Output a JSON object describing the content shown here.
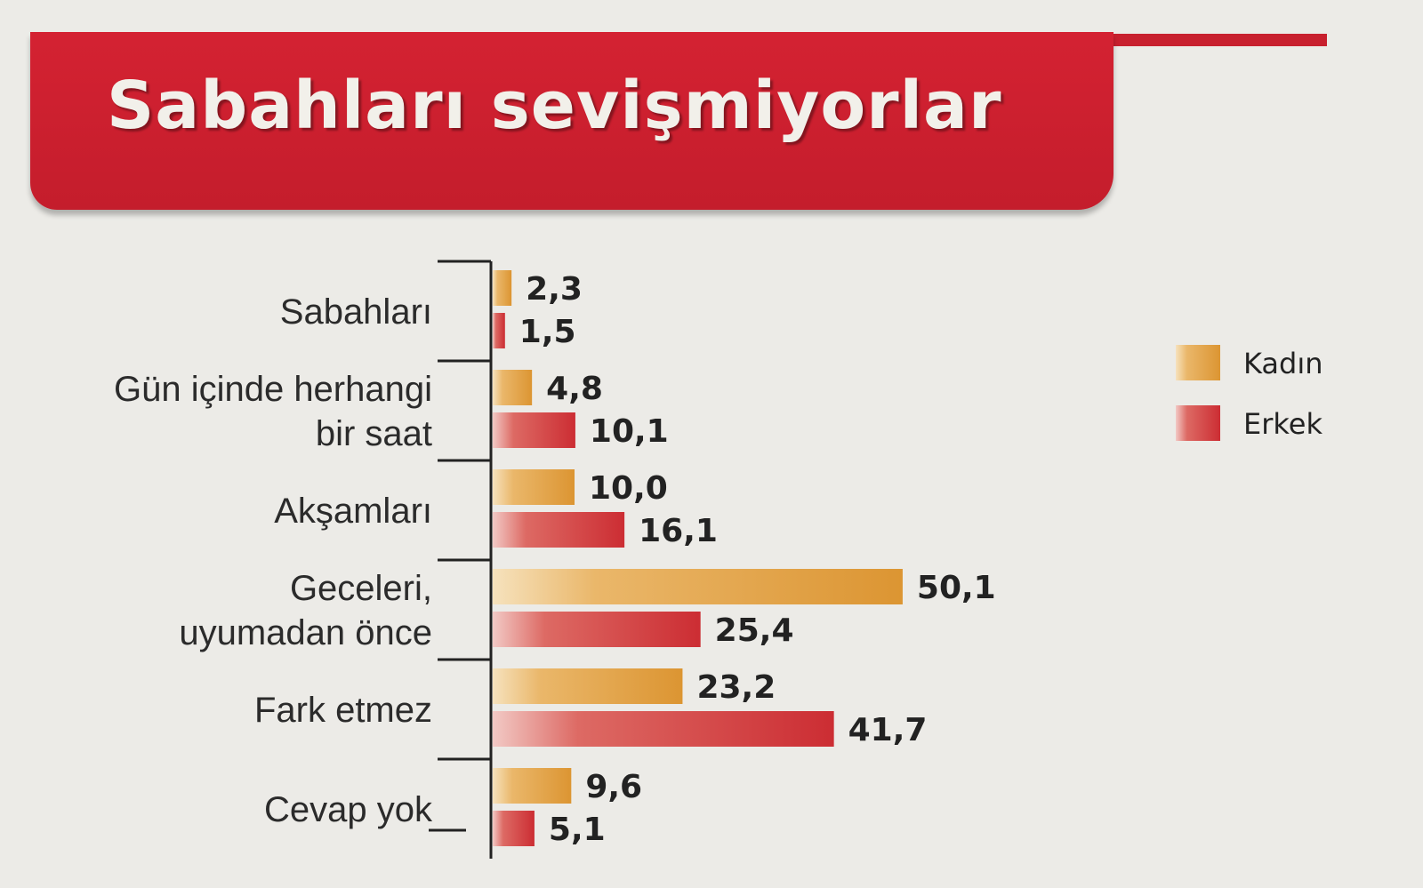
{
  "header": {
    "title": "Sabahları sevişmiyorlar"
  },
  "colors": {
    "banner": "#c8202e",
    "kadin": "#e2a140",
    "erkek": "#d23a3e"
  },
  "chart_data": {
    "type": "bar",
    "orientation": "horizontal",
    "title": "Sabahları sevişmiyorlar",
    "xlim": [
      0,
      50.1
    ],
    "grid": false,
    "legend_placement": "right",
    "categories": [
      [
        "Sabahları"
      ],
      [
        "Gün içinde herhangi",
        "bir saat"
      ],
      [
        "Akşamları"
      ],
      [
        "Geceleri,",
        "uyumadan önce"
      ],
      [
        "Fark etmez"
      ],
      [
        "Cevap yok"
      ]
    ],
    "series": [
      {
        "name": "Kadın",
        "values": [
          2.3,
          4.8,
          10.0,
          50.1,
          23.2,
          9.6
        ],
        "labels": [
          "2,3",
          "4,8",
          "10,0",
          "50,1",
          "23,2",
          "9,6"
        ]
      },
      {
        "name": "Erkek",
        "values": [
          1.5,
          10.1,
          16.1,
          25.4,
          41.7,
          5.1
        ],
        "labels": [
          "1,5",
          "10,1",
          "16,1",
          "25,4",
          "41,7",
          "5,1"
        ]
      }
    ]
  }
}
